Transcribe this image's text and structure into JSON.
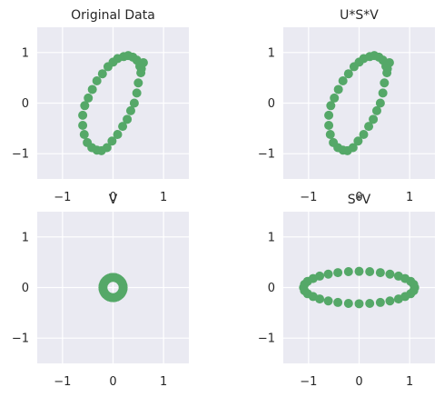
{
  "colors": {
    "background": "#eaeaf2",
    "grid": "#ffffff",
    "marker": "#55a868",
    "text": "#262626"
  },
  "chart_data": [
    {
      "type": "scatter",
      "title": "Original Data",
      "xlim": [
        -1.5,
        1.5
      ],
      "ylim": [
        -1.5,
        1.5
      ],
      "xticks": [
        -1,
        0,
        1
      ],
      "yticks": [
        -1,
        0,
        1
      ],
      "xtick_labels": [
        "−1",
        "0",
        "1"
      ],
      "ytick_labels": [
        "−1",
        "0",
        "1"
      ],
      "grid": true,
      "series": [
        {
          "x": [
            0.6,
            0.55,
            0.5,
            0.47,
            0.42,
            0.35,
            0.28,
            0.19,
            0.09,
            -0.02,
            -0.12,
            -0.23,
            -0.32,
            -0.42,
            -0.51,
            -0.57,
            -0.6,
            -0.6,
            -0.56,
            -0.49,
            -0.41,
            -0.32,
            -0.21,
            -0.1,
            0.0,
            0.09,
            0.21,
            0.3,
            0.39,
            0.47,
            0.53,
            0.56
          ],
          "y": [
            0.8,
            0.6,
            0.4,
            0.2,
            0.0,
            -0.15,
            -0.32,
            -0.46,
            -0.62,
            -0.75,
            -0.88,
            -0.94,
            -0.93,
            -0.88,
            -0.78,
            -0.62,
            -0.44,
            -0.24,
            -0.05,
            0.1,
            0.27,
            0.44,
            0.58,
            0.72,
            0.81,
            0.88,
            0.92,
            0.94,
            0.91,
            0.85,
            0.73,
            0.68
          ]
        }
      ]
    },
    {
      "type": "scatter",
      "title": "U*S*V",
      "xlim": [
        -1.5,
        1.5
      ],
      "ylim": [
        -1.5,
        1.5
      ],
      "xticks": [
        -1,
        0,
        1
      ],
      "yticks": [
        -1,
        0,
        1
      ],
      "xtick_labels": [
        "−1",
        "0",
        "1"
      ],
      "ytick_labels": [
        "−1",
        "0",
        "1"
      ],
      "grid": true,
      "series": [
        {
          "x": [
            0.6,
            0.55,
            0.5,
            0.47,
            0.42,
            0.35,
            0.28,
            0.19,
            0.09,
            -0.02,
            -0.12,
            -0.23,
            -0.32,
            -0.42,
            -0.51,
            -0.57,
            -0.6,
            -0.6,
            -0.56,
            -0.49,
            -0.41,
            -0.32,
            -0.21,
            -0.1,
            0.0,
            0.09,
            0.21,
            0.3,
            0.39,
            0.47,
            0.53,
            0.56
          ],
          "y": [
            0.8,
            0.6,
            0.4,
            0.2,
            0.0,
            -0.15,
            -0.32,
            -0.46,
            -0.62,
            -0.75,
            -0.88,
            -0.94,
            -0.93,
            -0.88,
            -0.78,
            -0.62,
            -0.44,
            -0.24,
            -0.05,
            0.1,
            0.27,
            0.44,
            0.58,
            0.72,
            0.81,
            0.88,
            0.92,
            0.94,
            0.91,
            0.85,
            0.73,
            0.68
          ]
        }
      ]
    },
    {
      "type": "scatter",
      "title": "V",
      "xlim": [
        -1.5,
        1.5
      ],
      "ylim": [
        -1.5,
        1.5
      ],
      "xticks": [
        -1,
        0,
        1
      ],
      "yticks": [
        -1,
        0,
        1
      ],
      "xtick_labels": [
        "−1",
        "0",
        "1"
      ],
      "ytick_labels": [
        "−1",
        "0",
        "1"
      ],
      "grid": true,
      "series": [
        {
          "x": [
            0.2,
            0.197,
            0.185,
            0.166,
            0.141,
            0.111,
            0.077,
            0.039,
            0.0,
            -0.039,
            -0.077,
            -0.111,
            -0.141,
            -0.166,
            -0.185,
            -0.197,
            -0.2,
            -0.197,
            -0.185,
            -0.166,
            -0.141,
            -0.111,
            -0.077,
            -0.039,
            0.0,
            0.039,
            0.077,
            0.111,
            0.141,
            0.166,
            0.185,
            0.197
          ],
          "y": [
            0.0,
            0.039,
            0.077,
            0.111,
            0.141,
            0.166,
            0.185,
            0.197,
            0.2,
            0.197,
            0.185,
            0.166,
            0.141,
            0.111,
            0.077,
            0.039,
            0.0,
            -0.039,
            -0.077,
            -0.111,
            -0.141,
            -0.166,
            -0.185,
            -0.197,
            -0.2,
            -0.197,
            -0.185,
            -0.166,
            -0.141,
            -0.111,
            -0.077,
            -0.039
          ]
        }
      ]
    },
    {
      "type": "scatter",
      "title": "S*V",
      "xlim": [
        -1.5,
        1.5
      ],
      "ylim": [
        -1.5,
        1.5
      ],
      "xticks": [
        -1,
        0,
        1
      ],
      "yticks": [
        -1,
        0,
        1
      ],
      "xtick_labels": [
        "−1",
        "0",
        "1"
      ],
      "ytick_labels": [
        "−1",
        "0",
        "1"
      ],
      "grid": true,
      "series": [
        {
          "x": [
            1.1,
            1.08,
            1.02,
            0.91,
            0.78,
            0.61,
            0.42,
            0.21,
            0.0,
            -0.21,
            -0.42,
            -0.61,
            -0.78,
            -0.91,
            -1.02,
            -1.08,
            -1.1,
            -1.08,
            -1.02,
            -0.91,
            -0.78,
            -0.61,
            -0.42,
            -0.21,
            0.0,
            0.21,
            0.42,
            0.61,
            0.78,
            0.91,
            1.02,
            1.08
          ],
          "y": [
            0.0,
            0.063,
            0.122,
            0.178,
            0.226,
            0.265,
            0.295,
            0.314,
            0.32,
            0.314,
            0.295,
            0.265,
            0.226,
            0.178,
            0.122,
            0.063,
            0.0,
            -0.063,
            -0.122,
            -0.178,
            -0.226,
            -0.265,
            -0.295,
            -0.314,
            -0.32,
            -0.314,
            -0.295,
            -0.265,
            -0.226,
            -0.178,
            -0.122,
            -0.063
          ]
        }
      ]
    }
  ]
}
